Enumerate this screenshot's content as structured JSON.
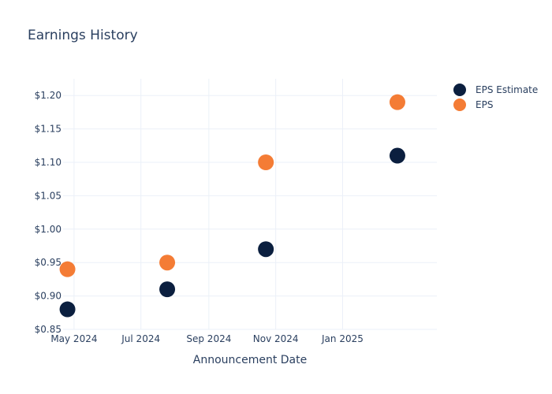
{
  "chart_data": {
    "type": "scatter",
    "title": "Earnings History",
    "xlabel": "Announcement Date",
    "ylabel": "",
    "ylim": [
      0.85,
      1.225
    ],
    "xlim_days": [
      -10,
      331
    ],
    "x_reference": "2024-05-01",
    "x_ticks": [
      {
        "label": "May 2024",
        "day": 0
      },
      {
        "label": "Jul 2024",
        "day": 61
      },
      {
        "label": "Sep 2024",
        "day": 123
      },
      {
        "label": "Nov 2024",
        "day": 184
      },
      {
        "label": "Jan 2025",
        "day": 245
      }
    ],
    "y_ticks": [
      {
        "label": "$0.85",
        "value": 0.85
      },
      {
        "label": "$0.90",
        "value": 0.9
      },
      {
        "label": "$0.95",
        "value": 0.95
      },
      {
        "label": "$1.00",
        "value": 1.0
      },
      {
        "label": "$1.05",
        "value": 1.05
      },
      {
        "label": "$1.10",
        "value": 1.1
      },
      {
        "label": "$1.15",
        "value": 1.15
      },
      {
        "label": "$1.20",
        "value": 1.2
      }
    ],
    "x_dates": [
      "2024-04-25",
      "2024-07-25",
      "2024-10-23",
      "2025-02-20"
    ],
    "x_days": [
      -6,
      85,
      175,
      295
    ],
    "series": [
      {
        "name": "EPS Estimate",
        "color": "#0b1f3f",
        "values": [
          0.88,
          0.91,
          0.97,
          1.11
        ]
      },
      {
        "name": "EPS",
        "color": "#f47c35",
        "values": [
          0.94,
          0.95,
          1.1,
          1.19
        ]
      }
    ],
    "legend": "top-right",
    "grid": true
  }
}
